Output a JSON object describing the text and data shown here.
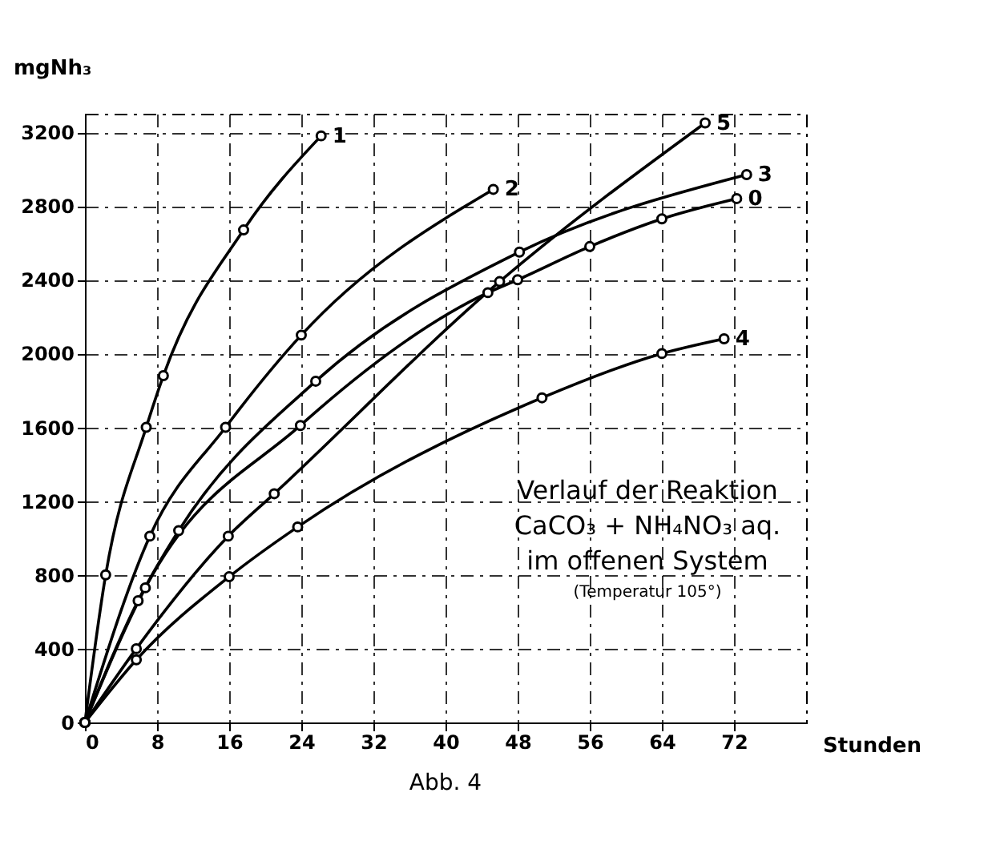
{
  "chart_data": {
    "type": "line",
    "xlabel": "Stunden",
    "ylabel": "mgNh₃",
    "annotations": [
      "Verlauf der Reaktion",
      "CaCO₃ + NH₄NO₃ aq.",
      "im offenen System",
      "(Temperatur 105°)",
      "Abb. 4"
    ],
    "xlim": [
      0,
      80
    ],
    "xticks": [
      0,
      8,
      16,
      24,
      32,
      40,
      48,
      56,
      64,
      72
    ],
    "ylim": [
      0,
      3300
    ],
    "yticks": [
      0,
      400,
      800,
      1200,
      1600,
      2000,
      2400,
      2800,
      3200
    ],
    "grid": true,
    "marker": "circle",
    "line_style": "solid",
    "series": [
      {
        "name": "1",
        "color": "#000000",
        "x": [
          0,
          2.3,
          6.8,
          8.7,
          17.6,
          26.2
        ],
        "values": [
          0,
          800,
          1600,
          1880,
          2670,
          3180
        ]
      },
      {
        "name": "2",
        "color": "#000000",
        "x": [
          0,
          7.2,
          15.6,
          24,
          45.3
        ],
        "values": [
          0,
          1010,
          1600,
          2100,
          2890
        ]
      },
      {
        "name": "3",
        "color": "#000000",
        "x": [
          0,
          5.9,
          10.4,
          25.6,
          48.2,
          73.4
        ],
        "values": [
          0,
          660,
          1040,
          1850,
          2550,
          2970
        ]
      },
      {
        "name": "4",
        "color": "#000000",
        "x": [
          0,
          5.7,
          16,
          23.6,
          50.7,
          64,
          70.9
        ],
        "values": [
          0,
          340,
          790,
          1060,
          1760,
          2000,
          2080
        ]
      },
      {
        "name": "5",
        "color": "#000000",
        "x": [
          0,
          5.7,
          15.9,
          21,
          46,
          68.8
        ],
        "values": [
          0,
          400,
          1010,
          1240,
          2390,
          3250
        ]
      },
      {
        "name": "0",
        "color": "#000000",
        "x": [
          0,
          6.7,
          23.9,
          44.7,
          48,
          56,
          64,
          72.3
        ],
        "values": [
          0,
          730,
          1610,
          2330,
          2400,
          2580,
          2730,
          2840
        ]
      }
    ]
  }
}
